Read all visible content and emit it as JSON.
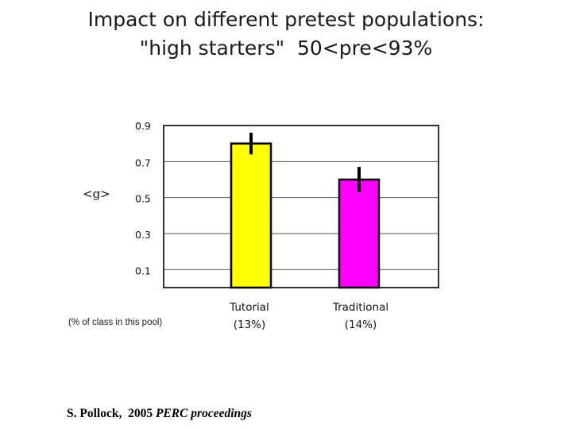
{
  "title": {
    "line1": "Impact on different pretest populations:",
    "line2": "\"high starters\"  50<pre<93%"
  },
  "chart_data": {
    "type": "bar",
    "categories": [
      "Tutorial (13%)",
      "Traditional (14%)"
    ],
    "category_lines": [
      [
        "Tutorial",
        "(13%)"
      ],
      [
        "Traditional",
        "(14%)"
      ]
    ],
    "values": [
      0.8,
      0.6
    ],
    "error": [
      0.06,
      0.07
    ],
    "bar_colors": [
      "#ffff00",
      "#ff00ff"
    ],
    "ylabel": "<g>",
    "yticks": [
      "0.9",
      "0.7",
      "0.5",
      "0.3",
      "0.1"
    ],
    "ytick_values": [
      0.9,
      0.7,
      0.5,
      0.3,
      0.1
    ],
    "ylim": [
      0.0,
      0.9
    ],
    "grid": true,
    "note": "(% of class in this pool)"
  },
  "citation": {
    "author": "S. Pollock,  2005 ",
    "source": "PERC proceedings"
  }
}
